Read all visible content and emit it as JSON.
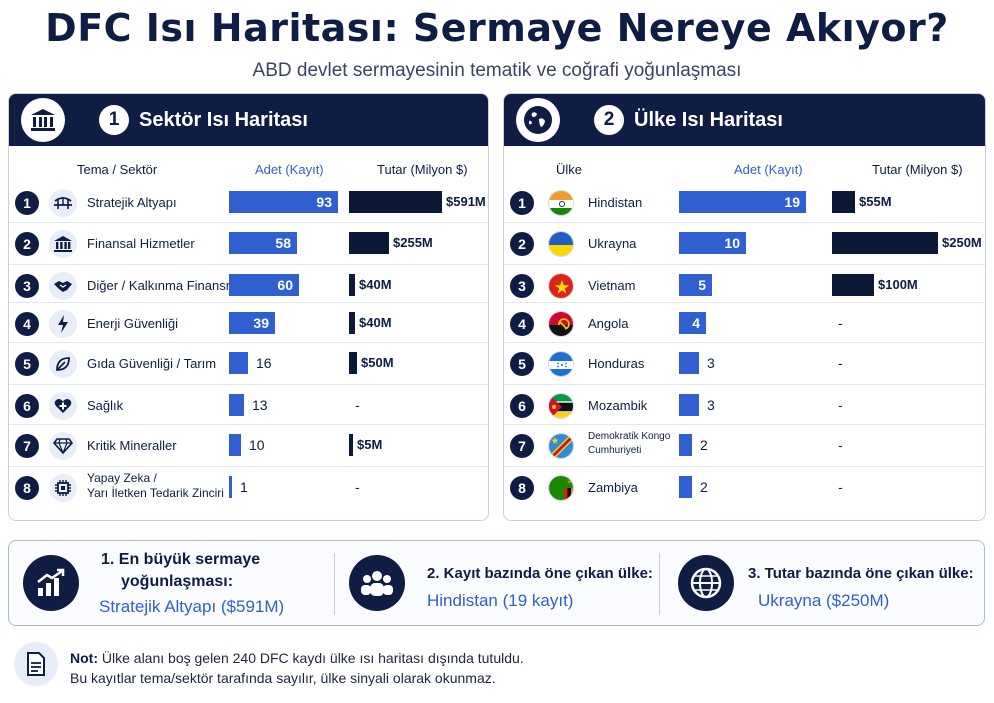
{
  "title": "DFC Isı Haritası: Sermaye Nereye Akıyor?",
  "subtitle": "ABD devlet sermayesinin tematik ve coğrafi yoğunlaşması",
  "colors": {
    "navy": "#0f1d44",
    "blue": "#2f5fd0",
    "dark_bar": "#0c1838"
  },
  "chart_data": [
    {
      "type": "table",
      "number": "1",
      "title": "Sektör Isı Haritası",
      "columns": [
        "Tema / Sektör",
        "Adet (Kayıt)",
        "Tutar (Milyon $)"
      ],
      "rows": [
        {
          "rank": "1",
          "label": "Stratejik Altyapı",
          "icon": "bridge-icon",
          "count": 93,
          "amount": 591,
          "amount_label": "$591M"
        },
        {
          "rank": "2",
          "label": "Finansal Hizmetler",
          "icon": "bank-icon",
          "count": 58,
          "amount": 255,
          "amount_label": "$255M"
        },
        {
          "rank": "3",
          "label": "Diğer / Kalkınma Finansmanı",
          "icon": "handshake-icon",
          "count": 60,
          "amount": 40,
          "amount_label": "$40M"
        },
        {
          "rank": "4",
          "label": "Enerji Güvenliği",
          "icon": "lightning-icon",
          "count": 39,
          "amount": 40,
          "amount_label": "$40M"
        },
        {
          "rank": "5",
          "label": "Gıda Güvenliği / Tarım",
          "icon": "leaf-icon",
          "count": 16,
          "amount": 50,
          "amount_label": "$50M"
        },
        {
          "rank": "6",
          "label": "Sağlık",
          "icon": "health-heart-icon",
          "count": 13,
          "amount": null,
          "amount_label": "-"
        },
        {
          "rank": "7",
          "label": "Kritik Mineraller",
          "icon": "diamond-icon",
          "count": 10,
          "amount": 5,
          "amount_label": "$5M"
        },
        {
          "rank": "8",
          "label_line1": "Yapay Zeka /",
          "label_line2": "Yarı İletken Tedarik Zinciri",
          "icon": "chip-icon",
          "count": 1,
          "amount": null,
          "amount_label": "-"
        }
      ]
    },
    {
      "type": "table",
      "number": "2",
      "title": "Ülke Isı Haritası",
      "columns": [
        "Ülke",
        "Adet (Kayıt)",
        "Tutar (Milyon $)"
      ],
      "rows": [
        {
          "rank": "1",
          "label": "Hindistan",
          "flag": "india-flag-icon",
          "count": 19,
          "amount": 55,
          "amount_label": "$55M"
        },
        {
          "rank": "2",
          "label": "Ukrayna",
          "flag": "ukraine-flag-icon",
          "count": 10,
          "amount": 250,
          "amount_label": "$250M"
        },
        {
          "rank": "3",
          "label": "Vietnam",
          "flag": "vietnam-flag-icon",
          "count": 5,
          "amount": 100,
          "amount_label": "$100M"
        },
        {
          "rank": "4",
          "label": "Angola",
          "flag": "angola-flag-icon",
          "count": 4,
          "amount": null,
          "amount_label": "-"
        },
        {
          "rank": "5",
          "label": "Honduras",
          "flag": "honduras-flag-icon",
          "count": 3,
          "amount": null,
          "amount_label": "-"
        },
        {
          "rank": "6",
          "label": "Mozambik",
          "flag": "mozambique-flag-icon",
          "count": 3,
          "amount": null,
          "amount_label": "-"
        },
        {
          "rank": "7",
          "label_line1": "Demokratik Kongo",
          "label_line2": "Cumhuriyeti",
          "flag": "dr-congo-flag-icon",
          "count": 2,
          "amount": null,
          "amount_label": "-"
        },
        {
          "rank": "8",
          "label": "Zambiya",
          "flag": "zambia-flag-icon",
          "count": 2,
          "amount": null,
          "amount_label": "-"
        }
      ]
    }
  ],
  "summary": [
    {
      "title_line1": "1. En büyük sermaye",
      "title_line2": "yoğunlaşması:",
      "value": "Stratejik Altyapı ($591M)",
      "icon": "growth-chart-icon"
    },
    {
      "title": "2. Kayıt bazında öne çıkan ülke:",
      "value": "Hindistan (19 kayıt)",
      "icon": "people-group-icon"
    },
    {
      "title": "3. Tutar bazında öne çıkan ülke:",
      "value": "Ukrayna ($250M)",
      "icon": "globe-icon"
    }
  ],
  "note": {
    "label": "Not:",
    "line1": "Ülke alanı boş gelen 240 DFC kaydı ülke ısı haritası dışında tutuldu.",
    "line2": "Bu kayıtlar tema/sektör tarafında sayılır, ülke sinyali olarak okunmaz.",
    "icon": "document-icon"
  }
}
